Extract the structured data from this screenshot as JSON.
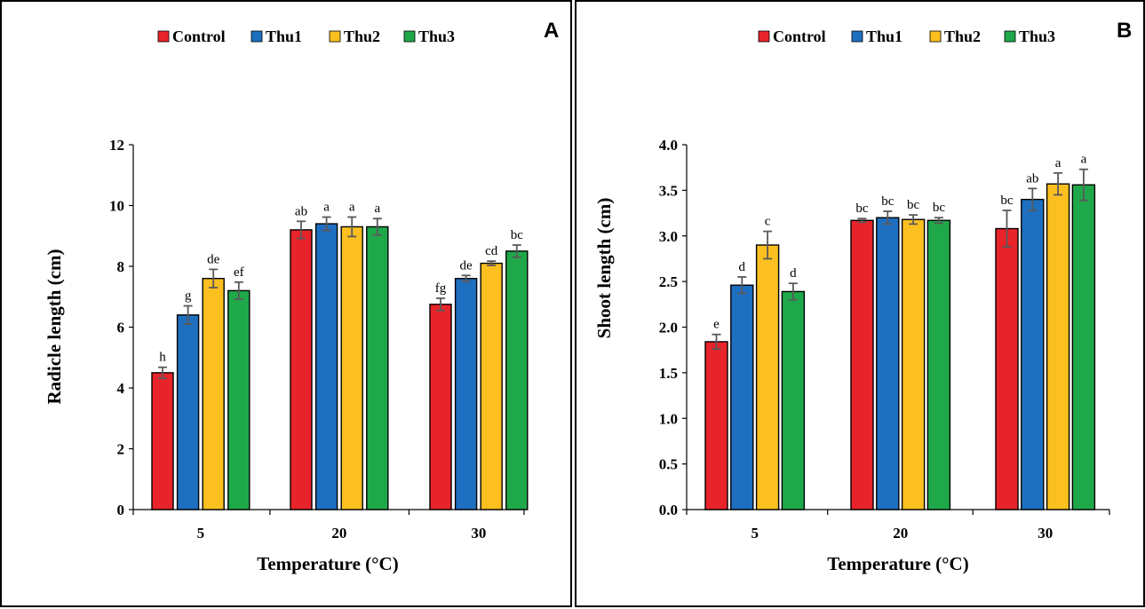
{
  "chart_data": [
    {
      "id": "A",
      "type": "bar",
      "panel_letter": "A",
      "categories": [
        "5",
        "20",
        "30"
      ],
      "series": [
        {
          "name": "Control",
          "color": "#e8232a",
          "values": [
            4.5,
            9.2,
            6.75
          ],
          "errors": [
            0.18,
            0.28,
            0.2
          ],
          "labels": [
            "h",
            "ab",
            "fg"
          ]
        },
        {
          "name": "Thu1",
          "color": "#1f6fc0",
          "values": [
            6.4,
            9.4,
            7.6
          ],
          "errors": [
            0.3,
            0.22,
            0.1
          ],
          "labels": [
            "g",
            "a",
            "de"
          ]
        },
        {
          "name": "Thu2",
          "color": "#fbc020",
          "values": [
            7.6,
            9.3,
            8.1
          ],
          "errors": [
            0.3,
            0.32,
            0.07
          ],
          "labels": [
            "de",
            "a",
            "cd"
          ]
        },
        {
          "name": "Thu3",
          "color": "#1fa84a",
          "values": [
            7.2,
            9.3,
            8.5
          ],
          "errors": [
            0.28,
            0.27,
            0.2
          ],
          "labels": [
            "ef",
            "a",
            "bc"
          ]
        }
      ],
      "xlabel": "Temperature (°C)",
      "ylabel": "Radicle length (cm)",
      "ylim": [
        0,
        12
      ],
      "yticks": [
        "0",
        "2",
        "4",
        "6",
        "8",
        "10",
        "12"
      ]
    },
    {
      "id": "B",
      "type": "bar",
      "panel_letter": "B",
      "categories": [
        "5",
        "20",
        "30"
      ],
      "series": [
        {
          "name": "Control",
          "color": "#e8232a",
          "values": [
            1.84,
            3.17,
            3.08
          ],
          "errors": [
            0.08,
            0.02,
            0.2
          ],
          "labels": [
            "e",
            "bc",
            "bc"
          ]
        },
        {
          "name": "Thu1",
          "color": "#1f6fc0",
          "values": [
            2.46,
            3.2,
            3.4
          ],
          "errors": [
            0.09,
            0.07,
            0.12
          ],
          "labels": [
            "d",
            "bc",
            "ab"
          ]
        },
        {
          "name": "Thu2",
          "color": "#fbc020",
          "values": [
            2.9,
            3.18,
            3.57
          ],
          "errors": [
            0.15,
            0.05,
            0.12
          ],
          "labels": [
            "c",
            "bc",
            "a"
          ]
        },
        {
          "name": "Thu3",
          "color": "#1fa84a",
          "values": [
            2.39,
            3.17,
            3.56
          ],
          "errors": [
            0.09,
            0.03,
            0.17
          ],
          "labels": [
            "d",
            "bc",
            "a"
          ]
        }
      ],
      "xlabel": "Temperature (°C)",
      "ylabel": "Shoot length (cm)",
      "ylim": [
        0,
        4.0
      ],
      "yticks": [
        "0.0",
        "0.5",
        "1.0",
        "1.5",
        "2.0",
        "2.5",
        "3.0",
        "3.5",
        "4.0"
      ]
    }
  ]
}
